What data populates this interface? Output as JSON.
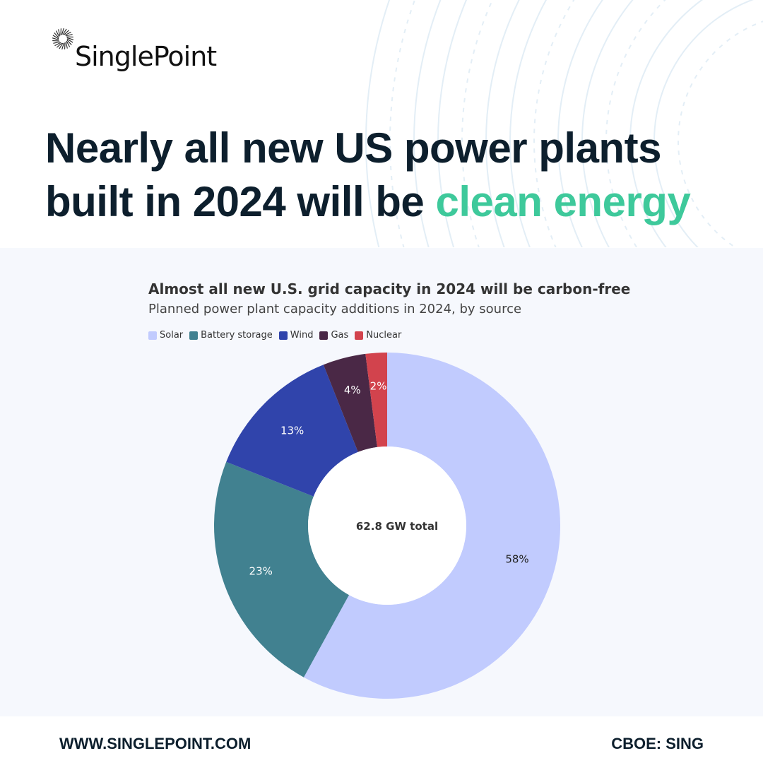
{
  "brand": {
    "name": "SinglePoint"
  },
  "headline": {
    "main": "Nearly all new US power plants built in 2024 will be ",
    "accent": "clean energy"
  },
  "colors": {
    "accent": "#3ec99b",
    "heading": "#0d1f2d",
    "chart_bg": "#f6f8fd"
  },
  "chart_data": {
    "type": "pie",
    "title": "Almost all new U.S. grid capacity in 2024 will be carbon-free",
    "subtitle": "Planned power plant capacity additions in 2024, by source",
    "center_label": "62.8 GW total",
    "legend_position": "top-left",
    "donut": true,
    "series": [
      {
        "name": "Solar",
        "value": 58,
        "label": "58%",
        "color": "#c1cbfe",
        "label_color": "#222222"
      },
      {
        "name": "Battery storage",
        "value": 23,
        "label": "23%",
        "color": "#418190",
        "label_color": "#ffffff"
      },
      {
        "name": "Wind",
        "value": 13,
        "label": "13%",
        "color": "#3044ab",
        "label_color": "#ffffff"
      },
      {
        "name": "Gas",
        "value": 4,
        "label": "4%",
        "color": "#4a2846",
        "label_color": "#ffffff"
      },
      {
        "name": "Nuclear",
        "value": 2,
        "label": "2%",
        "color": "#d2434d",
        "label_color": "#ffffff"
      }
    ]
  },
  "footer": {
    "url": "WWW.SINGLEPOINT.COM",
    "ticker": "CBOE: SING"
  }
}
